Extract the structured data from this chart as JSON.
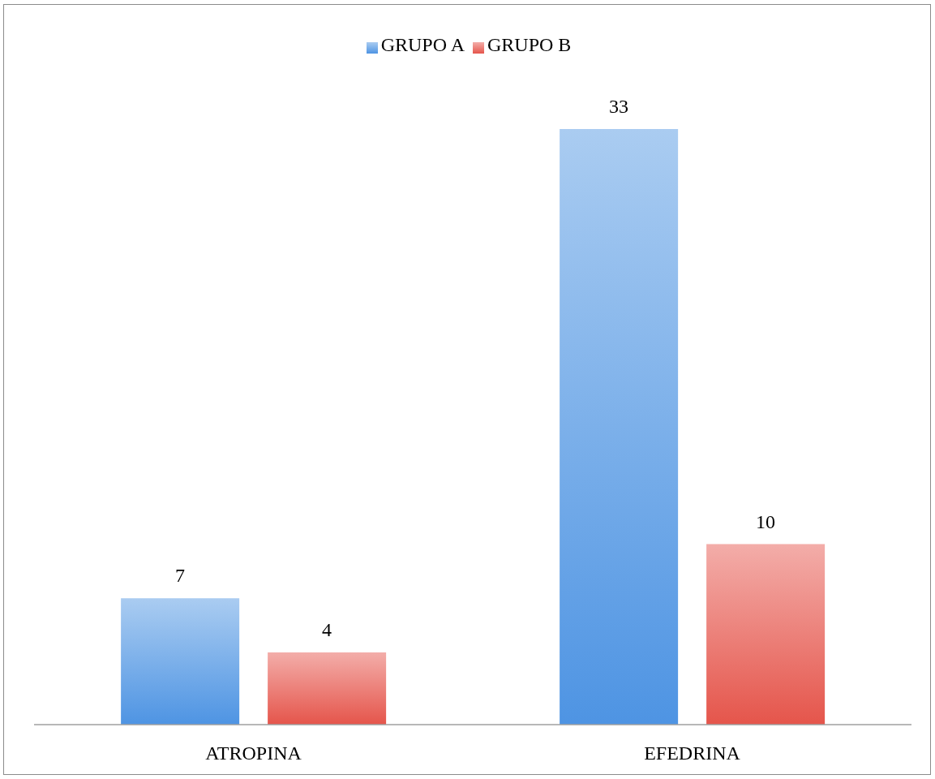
{
  "chart_data": {
    "type": "bar",
    "categories": [
      "ATROPINA",
      "EFEDRINA"
    ],
    "series": [
      {
        "name": "GRUPO A",
        "color": "#7cb0ea",
        "values": [
          7,
          33
        ]
      },
      {
        "name": "GRUPO B",
        "color": "#ec817a",
        "values": [
          4,
          10
        ]
      }
    ],
    "data_labels": true,
    "legend": "top"
  }
}
